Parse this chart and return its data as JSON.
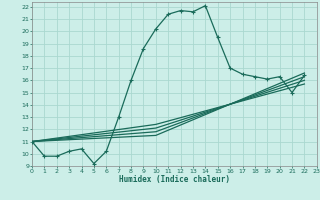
{
  "xlabel": "Humidex (Indice chaleur)",
  "ylabel": "",
  "bg_color": "#cceee8",
  "grid_color": "#aad8d0",
  "line_color": "#1a6b5a",
  "spine_color": "#888888",
  "xlim": [
    0,
    23
  ],
  "ylim": [
    9,
    22.4
  ],
  "xticks": [
    0,
    1,
    2,
    3,
    4,
    5,
    6,
    7,
    8,
    9,
    10,
    11,
    12,
    13,
    14,
    15,
    16,
    17,
    18,
    19,
    20,
    21,
    22,
    23
  ],
  "yticks": [
    9,
    10,
    11,
    12,
    13,
    14,
    15,
    16,
    17,
    18,
    19,
    20,
    21,
    22
  ],
  "series1": [
    [
      0,
      11.0
    ],
    [
      1,
      9.8
    ],
    [
      2,
      9.8
    ],
    [
      3,
      10.2
    ],
    [
      4,
      10.4
    ],
    [
      5,
      9.2
    ],
    [
      6,
      10.2
    ],
    [
      7,
      13.0
    ],
    [
      8,
      16.0
    ],
    [
      9,
      18.6
    ],
    [
      10,
      20.2
    ],
    [
      11,
      21.4
    ],
    [
      12,
      21.7
    ],
    [
      13,
      21.6
    ],
    [
      14,
      22.1
    ],
    [
      15,
      19.5
    ],
    [
      16,
      17.0
    ],
    [
      17,
      16.5
    ],
    [
      18,
      16.3
    ],
    [
      19,
      16.1
    ],
    [
      20,
      16.3
    ],
    [
      21,
      15.0
    ],
    [
      22,
      16.4
    ]
  ],
  "fan_lines": [
    [
      [
        0,
        11.0
      ],
      [
        10,
        11.5
      ],
      [
        22,
        16.6
      ]
    ],
    [
      [
        0,
        11.0
      ],
      [
        10,
        11.8
      ],
      [
        22,
        16.3
      ]
    ],
    [
      [
        0,
        11.0
      ],
      [
        10,
        12.1
      ],
      [
        22,
        16.0
      ]
    ],
    [
      [
        0,
        11.0
      ],
      [
        10,
        12.4
      ],
      [
        22,
        15.7
      ]
    ]
  ]
}
